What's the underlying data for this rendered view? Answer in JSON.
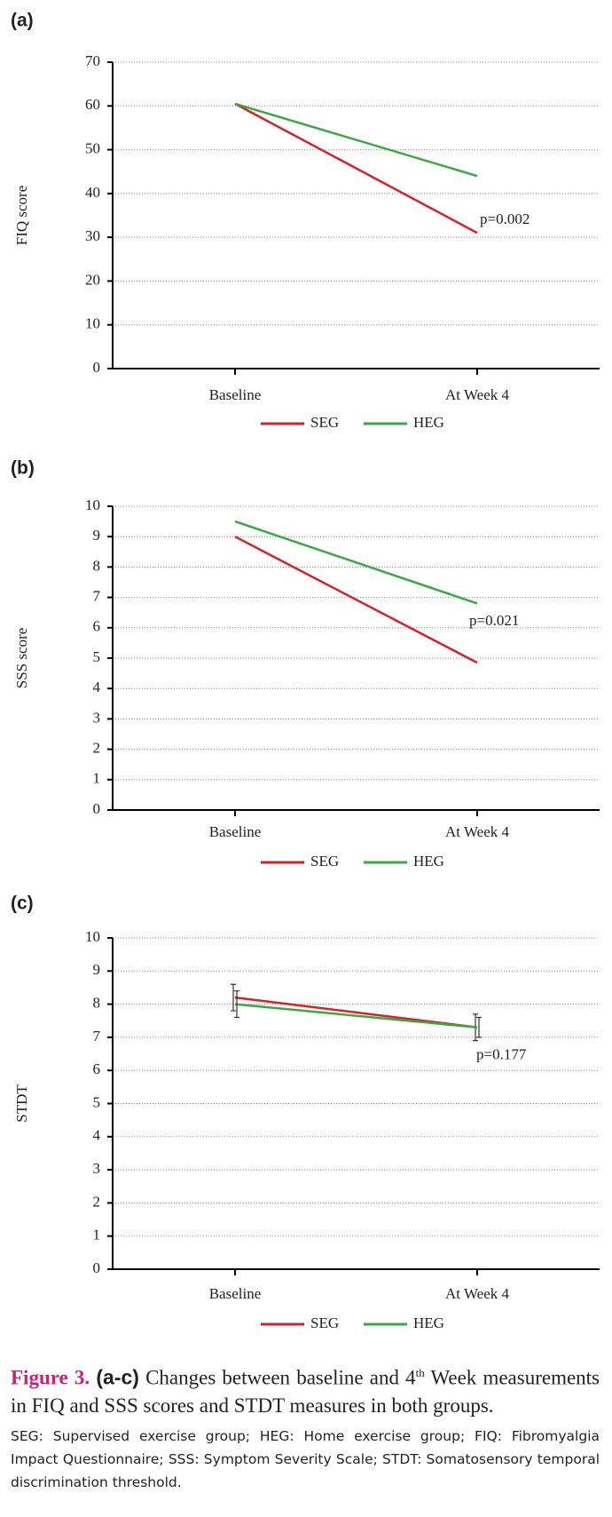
{
  "chart_data": [
    {
      "type": "line",
      "panel": "(a)",
      "ylabel": "FIQ score",
      "categories": [
        "Baseline",
        "At Week 4"
      ],
      "series": [
        {
          "name": "SEG",
          "color": "#d3222a",
          "values": [
            60.5,
            31
          ]
        },
        {
          "name": "HEG",
          "color": "#3aa845",
          "values": [
            60.5,
            44
          ]
        }
      ],
      "annotation": "p=0.002",
      "ylim": [
        0,
        70
      ],
      "yticks": [
        0,
        10,
        20,
        30,
        40,
        50,
        60,
        70
      ],
      "grid": true
    },
    {
      "type": "line",
      "panel": "(b)",
      "ylabel": "SSS score",
      "categories": [
        "Baseline",
        "At Week 4"
      ],
      "series": [
        {
          "name": "SEG",
          "color": "#d3222a",
          "values": [
            9,
            4.85
          ]
        },
        {
          "name": "HEG",
          "color": "#3aa845",
          "values": [
            9.5,
            6.8
          ]
        }
      ],
      "annotation": "p=0.021",
      "ylim": [
        0,
        10
      ],
      "yticks": [
        0,
        1,
        2,
        3,
        4,
        5,
        6,
        7,
        8,
        9,
        10
      ],
      "grid": true
    },
    {
      "type": "line",
      "panel": "(c)",
      "ylabel": "STDT",
      "categories": [
        "Baseline",
        "At Week 4"
      ],
      "series": [
        {
          "name": "SEG",
          "color": "#d3222a",
          "values": [
            8.2,
            7.3
          ],
          "errors": [
            0.4,
            0.4
          ]
        },
        {
          "name": "HEG",
          "color": "#3aa845",
          "values": [
            8.0,
            7.3
          ],
          "errors": [
            0.4,
            0.3
          ]
        }
      ],
      "annotation": "p=0.177",
      "ylim": [
        0,
        10
      ],
      "yticks": [
        0,
        1,
        2,
        3,
        4,
        5,
        6,
        7,
        8,
        9,
        10
      ],
      "grid": true
    }
  ],
  "caption": {
    "label": "Figure 3.",
    "panels": "(a-c)",
    "text": "Changes between baseline and 4",
    "sup": "th",
    "text2": "Week measurements in FIQ and SSS scores and STDT measures in both groups.",
    "footnote": "SEG: Supervised exercise group; HEG: Home exercise group; FIQ: Fibromyalgia Impact Questionnaire; SSS: Symptom Severity Scale; STDT: Somatosensory temporal discrimination threshold."
  }
}
